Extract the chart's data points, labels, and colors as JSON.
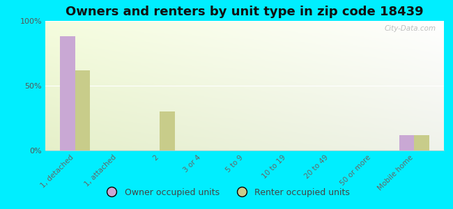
{
  "title": "Owners and renters by unit type in zip code 18439",
  "categories": [
    "1, detached",
    "1, attached",
    "2",
    "3 or 4",
    "5 to 9",
    "10 to 19",
    "20 to 49",
    "50 or more",
    "Mobile home"
  ],
  "owner_values": [
    88,
    0,
    0,
    0,
    0,
    0,
    0,
    0,
    12
  ],
  "renter_values": [
    62,
    0,
    30,
    0,
    0,
    0,
    0,
    0,
    12
  ],
  "owner_color": "#c9a8d4",
  "renter_color": "#c8cc8a",
  "ylim": [
    0,
    100
  ],
  "yticks": [
    0,
    50,
    100
  ],
  "ytick_labels": [
    "0%",
    "50%",
    "100%"
  ],
  "bg_color_topleft": "#d6e8b8",
  "bg_color_topright": "#f0f8e8",
  "bg_color_bottom": "#eaf5d0",
  "outer_background": "#00eeff",
  "watermark": "City-Data.com",
  "legend_owner": "Owner occupied units",
  "legend_renter": "Renter occupied units",
  "bar_width": 0.35,
  "title_fontsize": 13
}
